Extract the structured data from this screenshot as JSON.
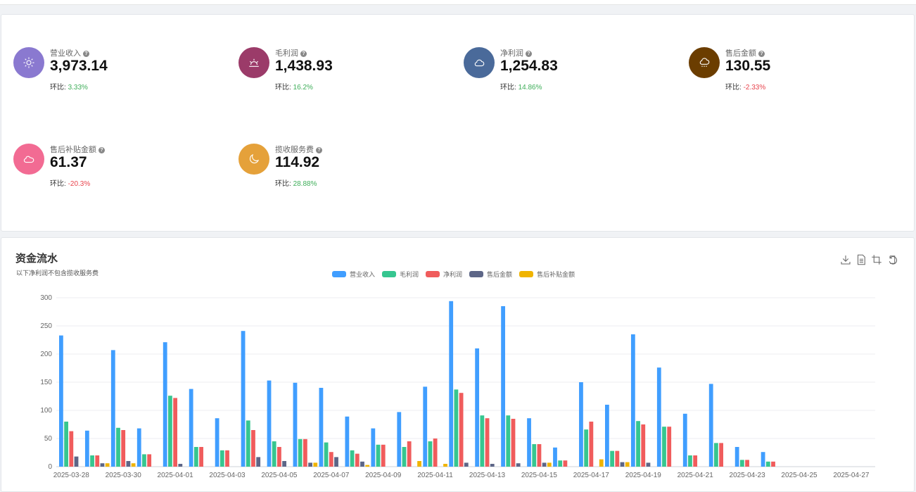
{
  "stats": [
    {
      "label": "营业收入",
      "value": "3,973.14",
      "ratio_label": "环比:",
      "ratio": "3.33%",
      "trend": "up",
      "color": "#8a79d0",
      "icon": "sun-icon"
    },
    {
      "label": "毛利润",
      "value": "1,438.93",
      "ratio_label": "环比:",
      "ratio": "16.2%",
      "trend": "up",
      "color": "#9b3b69",
      "icon": "sunrise-icon"
    },
    {
      "label": "净利润",
      "value": "1,254.83",
      "ratio_label": "环比:",
      "ratio": "14.86%",
      "trend": "up",
      "color": "#4a6a9a",
      "icon": "cloud-icon"
    },
    {
      "label": "售后金额",
      "value": "130.55",
      "ratio_label": "环比:",
      "ratio": "-2.33%",
      "trend": "down",
      "color": "#6b3d00",
      "icon": "rain-cloud-icon"
    },
    {
      "label": "售后补贴金额",
      "value": "61.37",
      "ratio_label": "环比:",
      "ratio": "-20.3%",
      "trend": "down",
      "color": "#f26b93",
      "icon": "partly-cloudy-icon"
    },
    {
      "label": "揽收服务费",
      "value": "114.92",
      "ratio_label": "环比:",
      "ratio": "28.88%",
      "trend": "up",
      "color": "#e5a13a",
      "icon": "moon-icon"
    }
  ],
  "chart_header": {
    "title": "资金流水",
    "subtitle": "以下净利润不包含揽收服务费"
  },
  "toolbox": [
    "download-icon",
    "data-view-icon",
    "crop-icon",
    "restore-icon"
  ],
  "chart_data": {
    "type": "bar",
    "x": [
      "2025-03-28",
      "2025-03-29",
      "2025-03-30",
      "2025-03-31",
      "2025-04-01",
      "2025-04-02",
      "2025-04-03",
      "2025-04-04",
      "2025-04-05",
      "2025-04-06",
      "2025-04-07",
      "2025-04-08",
      "2025-04-09",
      "2025-04-10",
      "2025-04-11",
      "2025-04-12",
      "2025-04-13",
      "2025-04-14",
      "2025-04-15",
      "2025-04-16",
      "2025-04-17",
      "2025-04-18",
      "2025-04-19",
      "2025-04-20",
      "2025-04-21",
      "2025-04-22",
      "2025-04-23",
      "2025-04-24",
      "2025-04-25",
      "2025-04-26",
      "2025-04-27",
      "2025-04-28"
    ],
    "tick_labels": [
      "2025-03-28",
      "2025-03-30",
      "2025-04-01",
      "2025-04-03",
      "2025-04-05",
      "2025-04-07",
      "2025-04-09",
      "2025-04-11",
      "2025-04-13",
      "2025-04-15",
      "2025-04-17",
      "2025-04-19",
      "2025-04-21",
      "2025-04-23",
      "2025-04-25",
      "2025-04-27"
    ],
    "ylim": [
      0,
      300
    ],
    "yticks": [
      0,
      50,
      100,
      150,
      200,
      250,
      300
    ],
    "legend_position": "top-center",
    "series": [
      {
        "name": "营业收入",
        "color": "#409eff",
        "values": [
          233,
          64,
          207,
          68,
          221,
          138,
          86,
          241,
          153,
          149,
          140,
          89,
          68,
          97,
          142,
          294,
          210,
          285,
          86,
          34,
          150,
          110,
          235,
          176,
          94,
          147,
          35,
          26,
          0,
          0,
          0,
          0
        ]
      },
      {
        "name": "毛利润",
        "color": "#36c690",
        "values": [
          80,
          20,
          69,
          22,
          126,
          35,
          29,
          82,
          45,
          49,
          43,
          29,
          39,
          35,
          45,
          137,
          91,
          91,
          40,
          11,
          66,
          28,
          81,
          71,
          20,
          42,
          12,
          9,
          0,
          0,
          0,
          0
        ]
      },
      {
        "name": "净利润",
        "color": "#f05c5c",
        "values": [
          63,
          20,
          65,
          22,
          122,
          35,
          29,
          65,
          35,
          49,
          26,
          23,
          39,
          45,
          50,
          131,
          86,
          85,
          40,
          11,
          80,
          28,
          75,
          71,
          20,
          42,
          12,
          9,
          0,
          0,
          0,
          0
        ]
      },
      {
        "name": "售后金额",
        "color": "#5d6687",
        "values": [
          18,
          6,
          10,
          0,
          5,
          0,
          0,
          17,
          10,
          7,
          17,
          9,
          0,
          0,
          0,
          7,
          5,
          6,
          7,
          0,
          0,
          8,
          7,
          0,
          0,
          0,
          0,
          0,
          0,
          0,
          0,
          0
        ]
      },
      {
        "name": "售后补贴金额",
        "color": "#f0b400",
        "values": [
          0,
          6,
          6,
          0,
          0,
          0,
          0,
          0,
          0,
          7,
          0,
          3,
          0,
          10,
          5,
          0,
          0,
          0,
          7,
          0,
          13,
          8,
          0,
          0,
          0,
          0,
          0,
          0,
          0,
          0,
          0,
          0
        ]
      }
    ]
  }
}
